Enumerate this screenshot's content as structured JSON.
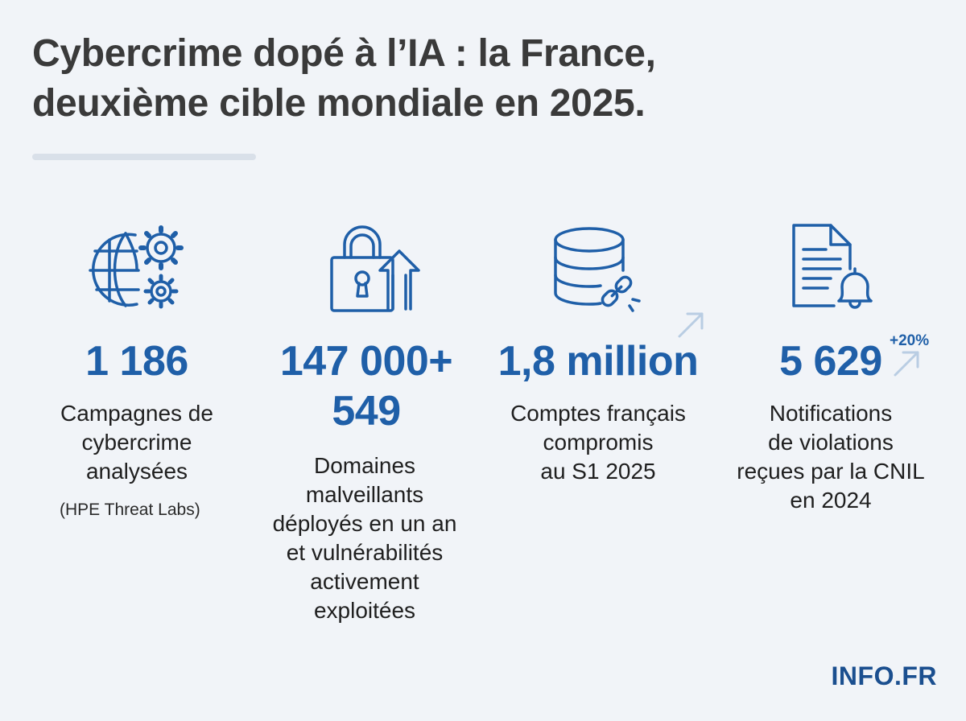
{
  "header": {
    "title_line1": "Cybercrime dopé à l’IA : la France,",
    "title_line2": "deuxième cible mondiale en 2025."
  },
  "stats": [
    {
      "icon": "globe-gears-icon",
      "value": "1 186",
      "desc": [
        "Campagnes de",
        "cybercrime",
        "analysées"
      ],
      "source": "(HPE Threat Labs)"
    },
    {
      "icon": "padlock-arrow-up-icon",
      "value": "147 000+",
      "value2": "549",
      "desc": [
        "Domaines",
        "malveillants",
        "déployés en un an",
        "et vulnérabilités",
        "activement",
        "exploitées"
      ]
    },
    {
      "icon": "database-link-icon",
      "value": "1,8 million",
      "desc": [
        "Comptes français",
        "compromis",
        "au S1 2025"
      ]
    },
    {
      "icon": "document-bell-icon",
      "value": "5 629",
      "badge": "+20%",
      "desc": [
        "Notifications",
        "de violations",
        "reçues par la CNIL",
        "en 2024"
      ]
    }
  ],
  "brand": "INFO.FR",
  "colors": {
    "accent": "#1f5fa8",
    "title": "#3a3a3a",
    "background": "#f1f4f8",
    "arrow": "#b9cde3"
  }
}
